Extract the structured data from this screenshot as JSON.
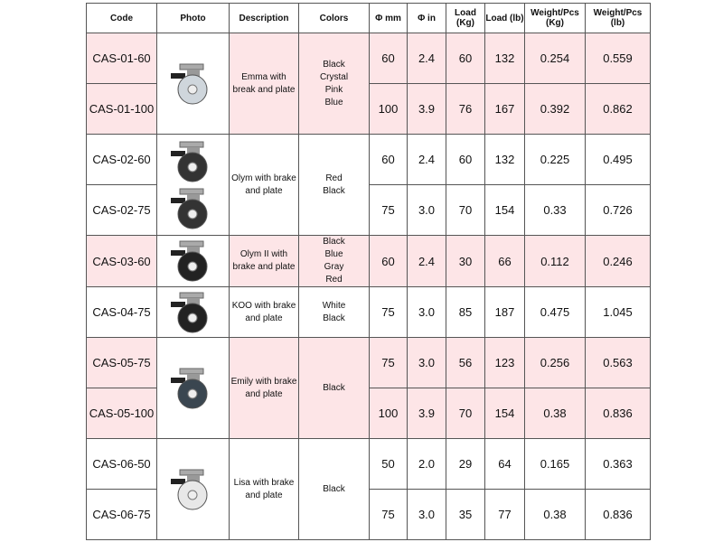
{
  "headers": [
    "Code",
    "Photo",
    "Description",
    "Colors",
    "Φ mm",
    "Φ in",
    "Load (Kg)",
    "Load (lb)",
    "Weight/Pcs (Kg)",
    "Weight/Pcs (lb)"
  ],
  "colors": {
    "highlight": "#fde5e7",
    "border": "#555555"
  },
  "groups": [
    {
      "description": "Emma with break and plate",
      "colors": [
        "Black",
        "Crystal",
        "Pink",
        "Blue"
      ],
      "photo": "emma-caster-image",
      "rows": [
        {
          "code": "CAS-01-60",
          "mm": "60",
          "in": "2.4",
          "load_kg": "60",
          "load_lb": "132",
          "w_kg": "0.254",
          "w_lb": "0.559"
        },
        {
          "code": "CAS-01-100",
          "mm": "100",
          "in": "3.9",
          "load_kg": "76",
          "load_lb": "167",
          "w_kg": "0.392",
          "w_lb": "0.862"
        }
      ]
    },
    {
      "description": "Olym with brake and plate",
      "colors": [
        "Red",
        "Black"
      ],
      "photo": "olym-caster-image",
      "rows": [
        {
          "code": "CAS-02-60",
          "mm": "60",
          "in": "2.4",
          "load_kg": "60",
          "load_lb": "132",
          "w_kg": "0.225",
          "w_lb": "0.495"
        },
        {
          "code": "CAS-02-75",
          "mm": "75",
          "in": "3.0",
          "load_kg": "70",
          "load_lb": "154",
          "w_kg": "0.33",
          "w_lb": "0.726"
        }
      ]
    },
    {
      "description": "Olym II with brake and plate",
      "colors": [
        "Black",
        "Blue",
        "Gray",
        "Red"
      ],
      "photo": "olym-ii-caster-image",
      "rows": [
        {
          "code": "CAS-03-60",
          "mm": "60",
          "in": "2.4",
          "load_kg": "30",
          "load_lb": "66",
          "w_kg": "0.112",
          "w_lb": "0.246"
        }
      ]
    },
    {
      "description": "KOO with brake and plate",
      "colors": [
        "White",
        "Black"
      ],
      "photo": "koo-caster-image",
      "rows": [
        {
          "code": "CAS-04-75",
          "mm": "75",
          "in": "3.0",
          "load_kg": "85",
          "load_lb": "187",
          "w_kg": "0.475",
          "w_lb": "1.045"
        }
      ]
    },
    {
      "description": "Emily with brake and plate",
      "colors": [
        "Black"
      ],
      "photo": "emily-caster-image",
      "rows": [
        {
          "code": "CAS-05-75",
          "mm": "75",
          "in": "3.0",
          "load_kg": "56",
          "load_lb": "123",
          "w_kg": "0.256",
          "w_lb": "0.563"
        },
        {
          "code": "CAS-05-100",
          "mm": "100",
          "in": "3.9",
          "load_kg": "70",
          "load_lb": "154",
          "w_kg": "0.38",
          "w_lb": "0.836"
        }
      ]
    },
    {
      "description": "Lisa with brake and plate",
      "colors": [
        "Black"
      ],
      "photo": "lisa-caster-image",
      "rows": [
        {
          "code": "CAS-06-50",
          "mm": "50",
          "in": "2.0",
          "load_kg": "29",
          "load_lb": "64",
          "w_kg": "0.165",
          "w_lb": "0.363"
        },
        {
          "code": "CAS-06-75",
          "mm": "75",
          "in": "3.0",
          "load_kg": "35",
          "load_lb": "77",
          "w_kg": "0.38",
          "w_lb": "0.836"
        }
      ]
    }
  ]
}
